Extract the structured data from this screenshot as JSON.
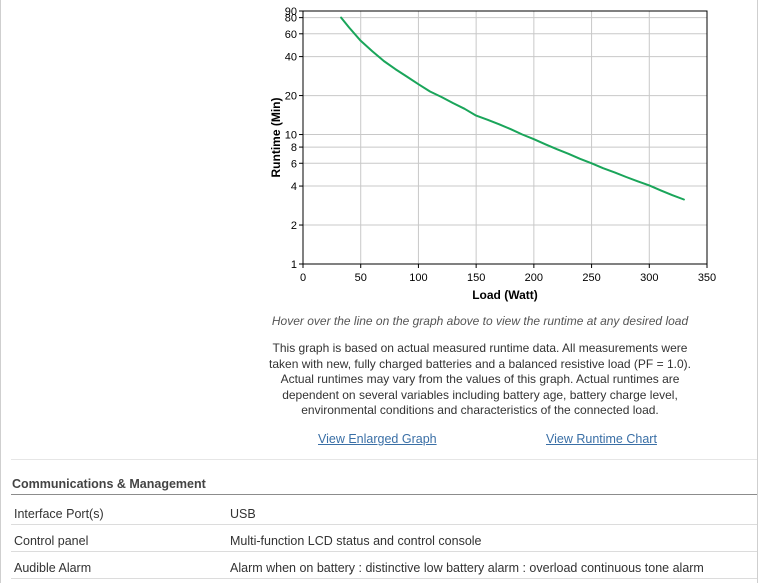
{
  "chart_data": {
    "type": "line",
    "xlabel": "Load (Watt)",
    "ylabel": "Runtime (Min)",
    "xlim": [
      0,
      350
    ],
    "ylim": [
      1,
      90
    ],
    "y_scale": "log",
    "grid": true,
    "x_ticks": [
      0,
      50,
      100,
      150,
      200,
      250,
      300,
      350
    ],
    "y_ticks": [
      1,
      2,
      4,
      6,
      8,
      10,
      20,
      40,
      60,
      80,
      90
    ],
    "series": [
      {
        "color": "#1aa55a",
        "x": [
          33,
          40,
          50,
          60,
          70,
          80,
          90,
          100,
          110,
          120,
          130,
          140,
          150,
          160,
          170,
          180,
          190,
          200,
          210,
          220,
          230,
          240,
          250,
          260,
          270,
          280,
          290,
          300,
          310,
          320,
          330
        ],
        "y": [
          80,
          67,
          53,
          44,
          37,
          32,
          28,
          24.5,
          21.5,
          19.5,
          17.5,
          15.8,
          14,
          13,
          12,
          11,
          10,
          9.2,
          8.4,
          7.7,
          7.1,
          6.5,
          6,
          5.5,
          5.1,
          4.7,
          4.35,
          4.05,
          3.7,
          3.4,
          3.15
        ]
      }
    ]
  },
  "graph_notes": {
    "hover": "Hover over the line on the graph above to view the runtime at any desired load",
    "disclaimer": "This graph is based on actual measured runtime data. All measurements were taken with new, fully charged batteries and a balanced resistive load (PF = 1.0). Actual runtimes may vary from the values of this graph. Actual runtimes are dependent on several variables including battery age, battery charge level, environmental conditions and characteristics of the connected load."
  },
  "links": {
    "enlarged": "View Enlarged Graph",
    "runtime_chart": "View Runtime Chart"
  },
  "specs": {
    "section_title": "Communications & Management",
    "rows": [
      {
        "label": "Interface Port(s)",
        "value": "USB"
      },
      {
        "label": "Control panel",
        "value": "Multi-function LCD status and control console"
      },
      {
        "label": "Audible Alarm",
        "value": "Alarm when on battery : distinctive low battery alarm : overload continuous tone alarm"
      }
    ]
  },
  "colors": {
    "series_line": "#1aa55a",
    "link": "#3a6fa6",
    "grid": "#c8c8c8"
  }
}
